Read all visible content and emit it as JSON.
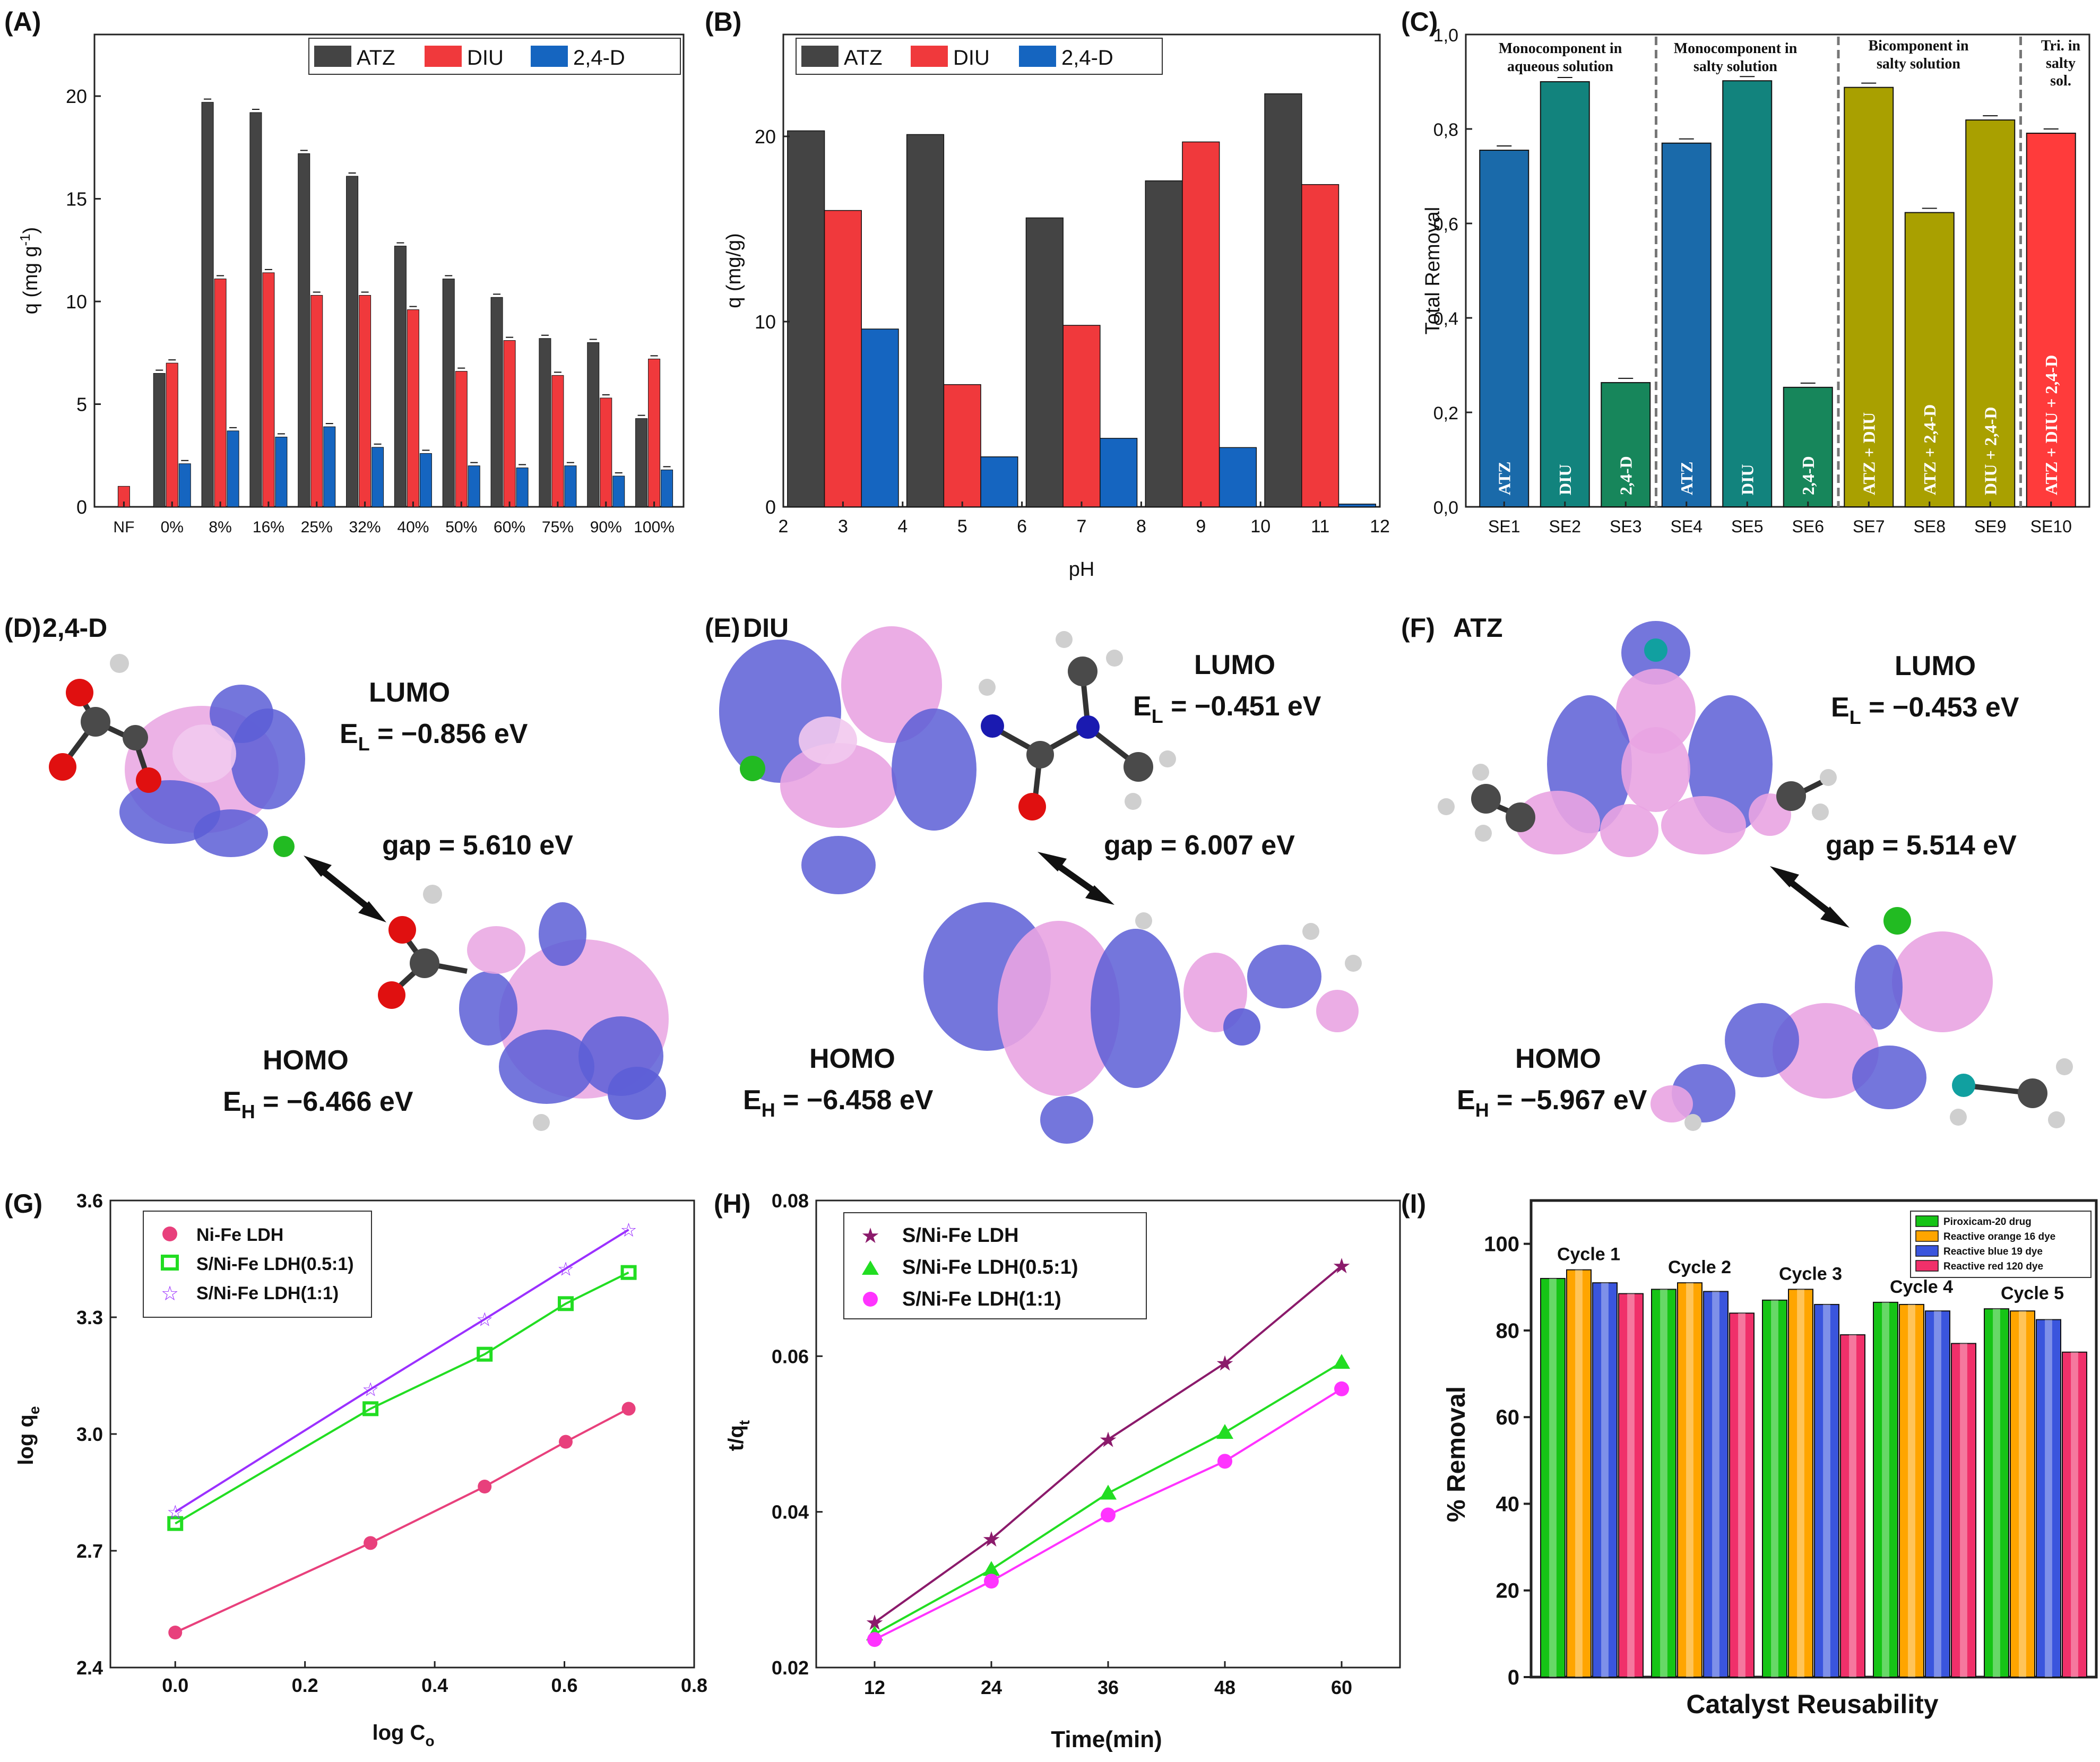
{
  "panel_labels": [
    "(A)",
    "(B)",
    "(C)",
    "(D)",
    "(E)",
    "(F)",
    "(G)",
    "(H)",
    "(I)"
  ],
  "colors": {
    "atz": "#444444",
    "diu": "#f0393c",
    "d24": "#1565c0",
    "c_blue": "#1a6aaa",
    "c_teal": "#12837d",
    "c_green": "#17865b",
    "c_olive": "#a9a000",
    "c_red": "#ff3b3b",
    "lobe_blue": "#5c5ed6",
    "lobe_pink": "#e9a4e2",
    "g1": "#e8407c",
    "g2": "#22dd22",
    "g3": "#9b30ff",
    "h1": "#8b1a6b",
    "h2": "#22dd22",
    "h3": "#ff33ff",
    "i_green": "#16c416",
    "i_orange": "#ffa500",
    "i_blue": "#3a55dd",
    "i_red": "#f0306a"
  },
  "chart_data": [
    {
      "id": "A",
      "type": "bar",
      "title": "",
      "xlabel": "",
      "ylabel": "q (mg g",
      "ylabel_sup": "-1",
      "ylabel_end": ")",
      "ylim": [
        0,
        23
      ],
      "yticks": [
        0,
        5,
        10,
        15,
        20
      ],
      "categories": [
        "NF",
        "0%",
        "8%",
        "16%",
        "25%",
        "32%",
        "40%",
        "50%",
        "60%",
        "75%",
        "90%",
        "100%"
      ],
      "series": [
        {
          "name": "ATZ",
          "values": [
            0,
            6.5,
            19.7,
            19.2,
            17.2,
            16.1,
            12.7,
            11.1,
            10.2,
            8.2,
            8.0,
            4.3
          ]
        },
        {
          "name": "DIU",
          "values": [
            1.0,
            7.0,
            11.1,
            11.4,
            10.3,
            10.3,
            9.6,
            6.6,
            8.1,
            6.4,
            5.3,
            7.2
          ]
        },
        {
          "name": "2,4-D",
          "values": [
            0,
            2.1,
            3.7,
            3.4,
            3.9,
            2.9,
            2.6,
            2.0,
            1.9,
            2.0,
            1.5,
            1.8
          ]
        }
      ],
      "legend": "top-right"
    },
    {
      "id": "B",
      "type": "bar",
      "title": "",
      "xlabel": "pH",
      "ylabel": "q (mg/g)",
      "xlim": [
        2,
        12
      ],
      "ylim": [
        0,
        25.5
      ],
      "yticks": [
        0,
        10,
        20
      ],
      "xticks": [
        2,
        3,
        4,
        5,
        6,
        7,
        8,
        9,
        10,
        11,
        12
      ],
      "categories": [
        3,
        5,
        7,
        9,
        11
      ],
      "series": [
        {
          "name": "ATZ",
          "values": [
            20.3,
            20.1,
            15.6,
            17.6,
            22.3
          ]
        },
        {
          "name": "DIU",
          "values": [
            16.0,
            6.6,
            9.8,
            19.7,
            17.4
          ]
        },
        {
          "name": "2,4-D",
          "values": [
            9.6,
            2.7,
            3.7,
            3.2,
            0.15
          ]
        }
      ],
      "legend": "top-left"
    },
    {
      "id": "C",
      "type": "bar",
      "title": "",
      "xlabel": "",
      "ylabel": "Total Removal",
      "ylim": [
        0,
        1.0
      ],
      "yticks": [
        "0,0",
        "0,2",
        "0,4",
        "0,6",
        "0,8",
        "1,0"
      ],
      "categories": [
        "SE1",
        "SE2",
        "SE3",
        "SE4",
        "SE5",
        "SE6",
        "SE7",
        "SE8",
        "SE9",
        "SE10"
      ],
      "values": [
        0.755,
        0.9,
        0.263,
        0.77,
        0.902,
        0.253,
        0.888,
        0.623,
        0.819,
        0.791
      ],
      "bar_labels": [
        "ATZ",
        "DIU",
        "2,4-D",
        "ATZ",
        "DIU",
        "2,4-D",
        "ATZ + DIU",
        "ATZ + 2,4-D",
        "DIU + 2,4-D",
        "ATZ + DIU + 2,4-D"
      ],
      "groups": [
        {
          "label1": "Monocomponent in",
          "label2": "aqueous solution"
        },
        {
          "label1": "Monocomponent in",
          "label2": "salty solution"
        },
        {
          "label1": "Bicomponent in",
          "label2": "salty solution"
        },
        {
          "label1": "Tri. in",
          "label2": "salty",
          "label3": "sol."
        }
      ]
    },
    {
      "id": "G",
      "type": "scatter",
      "xlabel": "log C",
      "xlabel_sub": "o",
      "ylabel": "log q",
      "ylabel_sub": "e",
      "xlim": [
        -0.1,
        0.8
      ],
      "ylim": [
        2.4,
        3.6
      ],
      "xticks": [
        "0.0",
        "0.2",
        "0.4",
        "0.6",
        "0.8"
      ],
      "yticks": [
        "2.4",
        "2.7",
        "3.0",
        "3.3",
        "3.6"
      ],
      "series": [
        {
          "name": "Ni-Fe LDH",
          "x": [
            0,
            0.301,
            0.477,
            0.602,
            0.699
          ],
          "y": [
            2.49,
            2.72,
            2.865,
            2.98,
            3.065
          ]
        },
        {
          "name": "S/Ni-Fe LDH(0.5:1)",
          "x": [
            0,
            0.301,
            0.477,
            0.602,
            0.699
          ],
          "y": [
            2.77,
            3.065,
            3.205,
            3.335,
            3.415
          ]
        },
        {
          "name": "S/Ni-Fe LDH(1:1)",
          "x": [
            0,
            0.301,
            0.477,
            0.602,
            0.699
          ],
          "y": [
            2.8,
            3.115,
            3.295,
            3.425,
            3.525
          ]
        }
      ]
    },
    {
      "id": "H",
      "type": "scatter",
      "xlabel": "Time(min)",
      "ylabel": "t/q",
      "ylabel_sub": "t",
      "xlim": [
        6,
        66
      ],
      "ylim": [
        0.02,
        0.08
      ],
      "xticks": [
        "12",
        "24",
        "36",
        "48",
        "60"
      ],
      "yticks": [
        "0.02",
        "0.04",
        "0.06",
        "0.08"
      ],
      "series": [
        {
          "name": "S/Ni-Fe LDH",
          "x": [
            12,
            24,
            36,
            48,
            60
          ],
          "y": [
            0.0258,
            0.0365,
            0.0493,
            0.0591,
            0.0716
          ]
        },
        {
          "name": "S/Ni-Fe LDH(0.5:1)",
          "x": [
            12,
            24,
            36,
            48,
            60
          ],
          "y": [
            0.0243,
            0.0326,
            0.0424,
            0.0502,
            0.0592
          ]
        },
        {
          "name": "S/Ni-Fe LDH(1:1)",
          "x": [
            12,
            24,
            36,
            48,
            60
          ],
          "y": [
            0.0236,
            0.0311,
            0.0396,
            0.0465,
            0.0558
          ]
        }
      ]
    },
    {
      "id": "I",
      "type": "bar",
      "xlabel": "Catalyst Reusability",
      "ylabel": "% Removal",
      "ylim": [
        0,
        110
      ],
      "yticks": [
        0,
        20,
        40,
        60,
        80,
        100
      ],
      "categories": [
        "Cycle 1",
        "Cycle 2",
        "Cycle 3",
        "Cycle 4",
        "Cycle 5"
      ],
      "series": [
        {
          "name": "Piroxicam-20 drug",
          "values": [
            92,
            89.5,
            87,
            86.5,
            85
          ]
        },
        {
          "name": "Reactive orange 16 dye",
          "values": [
            94,
            91,
            89.5,
            86,
            84.5
          ]
        },
        {
          "name": "Reactive blue 19 dye",
          "values": [
            91,
            89,
            86,
            84.5,
            82.5
          ]
        },
        {
          "name": "Reactive red 120 dye",
          "values": [
            88.5,
            84,
            79,
            77,
            75
          ]
        }
      ],
      "legend": "top-right"
    }
  ],
  "orbitals": [
    {
      "id": "D",
      "name": "2,4-D",
      "lumo": "LUMO",
      "lumo_e": "E",
      "lumo_sub": "L",
      "lumo_val": " = −0.856 eV",
      "homo": "HOMO",
      "homo_e": "E",
      "homo_sub": "H",
      "homo_val": " = −6.466 eV",
      "gap": "gap = 5.610 eV"
    },
    {
      "id": "E",
      "name": "DIU",
      "lumo": "LUMO",
      "lumo_e": "E",
      "lumo_sub": "L",
      "lumo_val": " = −0.451 eV",
      "homo": "HOMO",
      "homo_e": "E",
      "homo_sub": "H",
      "homo_val": " = −6.458 eV",
      "gap": "gap = 6.007 eV"
    },
    {
      "id": "F",
      "name": "ATZ",
      "lumo": "LUMO",
      "lumo_e": "E",
      "lumo_sub": "L",
      "lumo_val": " = −0.453 eV",
      "homo": "HOMO",
      "homo_e": "E",
      "homo_sub": "H",
      "homo_val": " = −5.967 eV",
      "gap": "gap = 5.514 eV"
    }
  ]
}
